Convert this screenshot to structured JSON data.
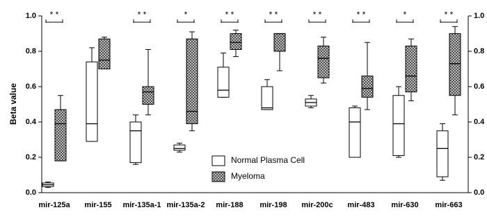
{
  "chart_data": {
    "type": "box",
    "y_label": "Beta value",
    "categories": [
      "mir-125a",
      "mir-155",
      "mir-135a-1",
      "mir-135a-2",
      "mir-188",
      "mir-198",
      "mir-200c",
      "mir-483",
      "mir-630",
      "mir-663"
    ],
    "significance": [
      "* *",
      "",
      "* *",
      "*",
      "* *",
      "* *",
      "* *",
      "* *",
      "*",
      "* *"
    ],
    "series": [
      {
        "name": "Normal Plasma Cell",
        "color": "#ffffff",
        "hatch": false,
        "low": [
          0.03,
          0.29,
          0.16,
          0.23,
          0.54,
          0.47,
          0.48,
          0.2,
          0.2,
          0.07
        ],
        "q1": [
          0.035,
          0.29,
          0.17,
          0.24,
          0.54,
          0.47,
          0.49,
          0.2,
          0.21,
          0.09
        ],
        "median": [
          0.045,
          0.39,
          0.35,
          0.25,
          0.58,
          0.48,
          0.51,
          0.4,
          0.39,
          0.25
        ],
        "q3": [
          0.055,
          0.74,
          0.4,
          0.27,
          0.71,
          0.6,
          0.53,
          0.48,
          0.55,
          0.35
        ],
        "high": [
          0.06,
          0.82,
          0.44,
          0.28,
          0.79,
          0.64,
          0.55,
          0.49,
          0.6,
          0.39
        ]
      },
      {
        "name": "Myeloma",
        "color": "#999999",
        "hatch": true,
        "low": [
          0.18,
          0.7,
          0.44,
          0.35,
          0.77,
          0.69,
          0.62,
          0.47,
          0.52,
          0.44
        ],
        "q1": [
          0.18,
          0.7,
          0.5,
          0.39,
          0.81,
          0.8,
          0.65,
          0.54,
          0.57,
          0.55
        ],
        "median": [
          0.39,
          0.75,
          0.57,
          0.46,
          0.85,
          0.9,
          0.76,
          0.59,
          0.66,
          0.73
        ],
        "q3": [
          0.47,
          0.87,
          0.6,
          0.87,
          0.9,
          0.9,
          0.83,
          0.66,
          0.83,
          0.9
        ],
        "high": [
          0.55,
          0.88,
          0.81,
          0.91,
          0.92,
          0.9,
          0.88,
          0.85,
          0.87,
          0.94
        ]
      }
    ],
    "ylim": [
      0,
      1
    ],
    "yticks": [
      {
        "value": 0,
        "label": "0.0"
      },
      0.2,
      0.4,
      0.6,
      0.8,
      {
        "value": 1,
        "label": "1.0"
      }
    ],
    "y2lim": [
      0,
      1
    ],
    "y2ticks": [
      {
        "value": 0,
        "label": "0.0"
      },
      0.2,
      0.4,
      0.6,
      0.8,
      {
        "value": 1,
        "label": "1.0"
      }
    ],
    "legend": "lower-center"
  }
}
